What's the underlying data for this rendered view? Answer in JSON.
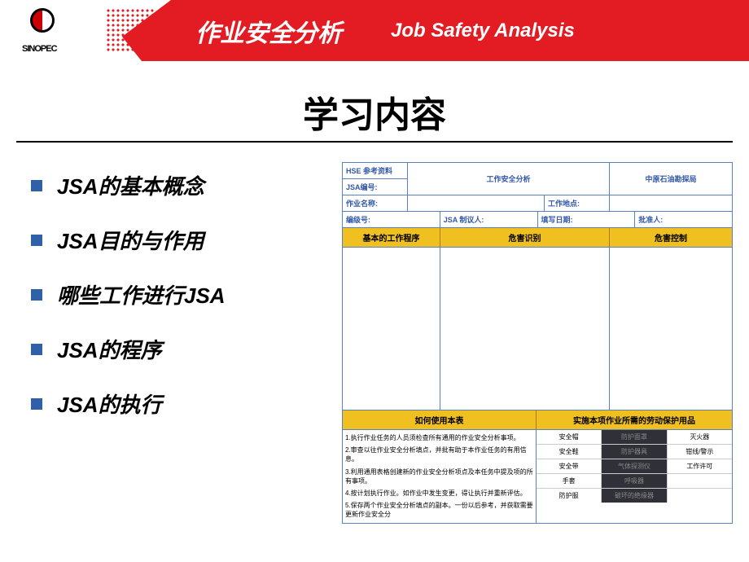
{
  "header": {
    "logo_text": "SINOPEC",
    "title_cn": "作业安全分析",
    "title_en": "Job Safety Analysis"
  },
  "main_title": "学习内容",
  "bullets": [
    "JSA的基本概念",
    "JSA目的与作用",
    "哪些工作进行JSA",
    "JSA的程序",
    "JSA的执行"
  ],
  "form": {
    "top": {
      "ref": "HSE 参考资料",
      "jsa_no": "JSA编号:",
      "center": "工作安全分析",
      "right": "中原石油勘探局"
    },
    "row2": {
      "c1": "作业名称:",
      "c3": "工作地点:"
    },
    "row3": {
      "c1": "编级号:",
      "c2": "JSA 制议人:",
      "c3": "填写日期:",
      "c4": "批准人:"
    },
    "headers": {
      "h1": "基本的工作程序",
      "h2": "危害识别",
      "h3": "危害控制"
    },
    "footer_headers": {
      "left": "如何使用本表",
      "right": "实施本项作业所需的劳动保护用品"
    },
    "instructions": [
      "1.执行作业任务的人员须检查所有通用的作业安全分析事项。",
      "2.审查以往作业安全分析填点，并批有助于本作业任务的有用信息。",
      "3.利用通用表格创建新的作业安全分析项点及本任务中提及项的所有事项。",
      "4.按计划执行作业。如作业中发生变更，得让执行并重新评估。",
      "5.保存两个作业安全分析填点的副本。一份以后参考，并获取需要更新作业安全分"
    ],
    "ppe": [
      [
        "安全帽",
        "防护面罩",
        "灭火器"
      ],
      [
        "安全鞋",
        "防护器具",
        "钳线/警示"
      ],
      [
        "安全带",
        "气体探测仪",
        "工作许可"
      ],
      [
        "手套",
        "呼吸器",
        ""
      ],
      [
        "防护服",
        "破坏的绝缘器",
        ""
      ]
    ]
  },
  "colors": {
    "brand_red": "#e31b23",
    "bullet_blue": "#3060a8",
    "form_border": "#5882c3",
    "header_yellow": "#f0c020",
    "dark_cell": "#303038"
  }
}
